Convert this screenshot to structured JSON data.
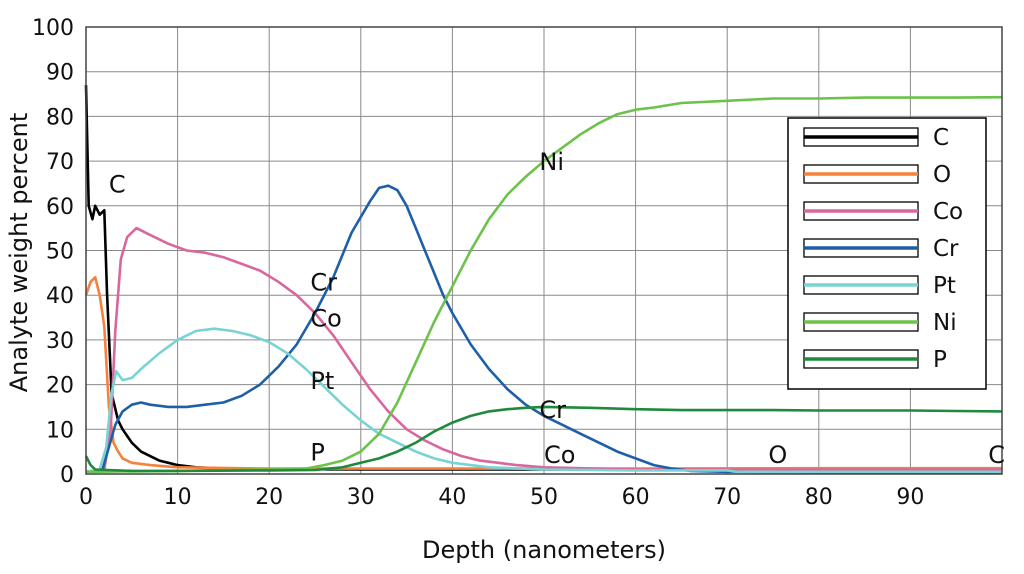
{
  "chart_data": {
    "type": "line",
    "title": "",
    "xlabel": "Depth (nanometers)",
    "ylabel": "Analyte weight percent",
    "xlim": [
      0,
      100
    ],
    "ylim": [
      0,
      100
    ],
    "xticks": [
      0,
      10,
      20,
      30,
      40,
      50,
      60,
      70,
      80,
      90
    ],
    "yticks": [
      0,
      10,
      20,
      30,
      40,
      50,
      60,
      70,
      80,
      90,
      100
    ],
    "grid": true,
    "legend_position": "right",
    "series": [
      {
        "name": "C",
        "color": "#000000",
        "points": [
          [
            0,
            87
          ],
          [
            0.3,
            60
          ],
          [
            0.7,
            57
          ],
          [
            1,
            60
          ],
          [
            1.5,
            58
          ],
          [
            2,
            59
          ],
          [
            2.3,
            40
          ],
          [
            2.8,
            18
          ],
          [
            3.5,
            12
          ],
          [
            4,
            10
          ],
          [
            5,
            7
          ],
          [
            6,
            5
          ],
          [
            7,
            4
          ],
          [
            8,
            3
          ],
          [
            9,
            2.5
          ],
          [
            10,
            2
          ],
          [
            12,
            1.5
          ],
          [
            15,
            1.2
          ],
          [
            20,
            1.1
          ],
          [
            30,
            1
          ],
          [
            40,
            1
          ],
          [
            50,
            1
          ],
          [
            60,
            1
          ],
          [
            70,
            1
          ],
          [
            80,
            1
          ],
          [
            90,
            1
          ],
          [
            100,
            1
          ]
        ]
      },
      {
        "name": "O",
        "color": "#f4823c",
        "points": [
          [
            0,
            40
          ],
          [
            0.5,
            43
          ],
          [
            1,
            44
          ],
          [
            1.5,
            40
          ],
          [
            2,
            33
          ],
          [
            2.5,
            15
          ],
          [
            3,
            7
          ],
          [
            3.5,
            5
          ],
          [
            4,
            3.5
          ],
          [
            5,
            2.5
          ],
          [
            7,
            2
          ],
          [
            10,
            1.5
          ],
          [
            20,
            1.2
          ],
          [
            40,
            1.2
          ],
          [
            60,
            1.2
          ],
          [
            80,
            1.3
          ],
          [
            100,
            1.3
          ]
        ]
      },
      {
        "name": "Co",
        "color": "#d9679e",
        "points": [
          [
            0,
            0.5
          ],
          [
            2,
            1
          ],
          [
            2.7,
            10
          ],
          [
            3.2,
            32
          ],
          [
            3.8,
            48
          ],
          [
            4.5,
            53
          ],
          [
            5.5,
            55
          ],
          [
            7,
            53.5
          ],
          [
            9,
            51.5
          ],
          [
            11,
            50
          ],
          [
            13,
            49.5
          ],
          [
            15,
            48.5
          ],
          [
            17,
            47
          ],
          [
            19,
            45.5
          ],
          [
            21,
            43
          ],
          [
            23,
            40
          ],
          [
            25,
            36
          ],
          [
            27,
            31
          ],
          [
            29,
            25
          ],
          [
            31,
            19
          ],
          [
            33,
            14
          ],
          [
            35,
            10
          ],
          [
            37,
            7.5
          ],
          [
            39,
            5.5
          ],
          [
            41,
            4
          ],
          [
            43,
            3
          ],
          [
            45,
            2.5
          ],
          [
            47,
            2
          ],
          [
            50,
            1.5
          ],
          [
            60,
            1
          ],
          [
            80,
            1
          ],
          [
            100,
            1
          ]
        ]
      },
      {
        "name": "Cr",
        "color": "#1f5fa8",
        "points": [
          [
            0,
            0.5
          ],
          [
            1.8,
            1
          ],
          [
            2.5,
            6
          ],
          [
            3.2,
            11
          ],
          [
            4,
            14
          ],
          [
            5,
            15.5
          ],
          [
            6,
            16
          ],
          [
            7,
            15.5
          ],
          [
            9,
            15
          ],
          [
            11,
            15
          ],
          [
            13,
            15.5
          ],
          [
            15,
            16
          ],
          [
            17,
            17.5
          ],
          [
            19,
            20
          ],
          [
            21,
            24
          ],
          [
            23,
            29
          ],
          [
            25,
            36
          ],
          [
            27,
            44
          ],
          [
            29,
            54
          ],
          [
            31,
            61
          ],
          [
            32,
            64
          ],
          [
            33,
            64.5
          ],
          [
            34,
            63.5
          ],
          [
            35,
            60
          ],
          [
            36,
            55
          ],
          [
            37,
            50
          ],
          [
            38,
            45
          ],
          [
            39,
            40
          ],
          [
            40,
            36
          ],
          [
            42,
            29
          ],
          [
            44,
            23.5
          ],
          [
            46,
            19
          ],
          [
            48,
            15.5
          ],
          [
            50,
            13
          ],
          [
            52,
            11
          ],
          [
            54,
            9
          ],
          [
            56,
            7
          ],
          [
            58,
            5
          ],
          [
            60,
            3.5
          ],
          [
            62,
            2
          ],
          [
            64,
            1.2
          ],
          [
            66,
            0.7
          ],
          [
            70,
            0.5
          ],
          [
            100,
            0.3
          ]
        ]
      },
      {
        "name": "Pt",
        "color": "#79d3d3",
        "points": [
          [
            0,
            0.5
          ],
          [
            1.5,
            1
          ],
          [
            2.2,
            6
          ],
          [
            2.8,
            18
          ],
          [
            3.3,
            23
          ],
          [
            4,
            21
          ],
          [
            5,
            21.5
          ],
          [
            6,
            23.5
          ],
          [
            8,
            27
          ],
          [
            10,
            30
          ],
          [
            12,
            32
          ],
          [
            14,
            32.5
          ],
          [
            16,
            32
          ],
          [
            18,
            31
          ],
          [
            20,
            29.5
          ],
          [
            22,
            27
          ],
          [
            24,
            23.5
          ],
          [
            26,
            19.5
          ],
          [
            28,
            15.5
          ],
          [
            30,
            12
          ],
          [
            32,
            9
          ],
          [
            34,
            7
          ],
          [
            36,
            5
          ],
          [
            38,
            3.5
          ],
          [
            40,
            2.5
          ],
          [
            44,
            1.5
          ],
          [
            50,
            1
          ],
          [
            60,
            0.8
          ],
          [
            70,
            0.8
          ],
          [
            71,
            0.5
          ],
          [
            80,
            0.5
          ],
          [
            100,
            0.5
          ]
        ]
      },
      {
        "name": "Ni",
        "color": "#6cc24a",
        "points": [
          [
            0,
            0.5
          ],
          [
            10,
            0.7
          ],
          [
            20,
            1
          ],
          [
            24,
            1.2
          ],
          [
            26,
            2
          ],
          [
            28,
            3
          ],
          [
            30,
            5
          ],
          [
            32,
            9
          ],
          [
            34,
            16
          ],
          [
            36,
            25
          ],
          [
            38,
            34
          ],
          [
            40,
            42
          ],
          [
            42,
            50
          ],
          [
            44,
            57
          ],
          [
            46,
            62.5
          ],
          [
            48,
            66.5
          ],
          [
            50,
            70
          ],
          [
            52,
            73
          ],
          [
            54,
            76
          ],
          [
            56,
            78.5
          ],
          [
            58,
            80.5
          ],
          [
            60,
            81.5
          ],
          [
            62,
            82
          ],
          [
            65,
            83
          ],
          [
            70,
            83.5
          ],
          [
            75,
            84
          ],
          [
            80,
            84
          ],
          [
            85,
            84.2
          ],
          [
            90,
            84.2
          ],
          [
            95,
            84.2
          ],
          [
            100,
            84.3
          ]
        ]
      },
      {
        "name": "P",
        "color": "#1f8a3c",
        "points": [
          [
            0,
            4
          ],
          [
            0.5,
            2
          ],
          [
            1,
            1
          ],
          [
            5,
            0.7
          ],
          [
            10,
            0.7
          ],
          [
            20,
            0.8
          ],
          [
            25,
            0.9
          ],
          [
            28,
            1.5
          ],
          [
            30,
            2.5
          ],
          [
            32,
            3.5
          ],
          [
            34,
            5
          ],
          [
            36,
            7
          ],
          [
            38,
            9.5
          ],
          [
            40,
            11.5
          ],
          [
            42,
            13
          ],
          [
            44,
            14
          ],
          [
            46,
            14.5
          ],
          [
            48,
            14.8
          ],
          [
            50,
            15
          ],
          [
            55,
            14.8
          ],
          [
            60,
            14.5
          ],
          [
            65,
            14.3
          ],
          [
            70,
            14.3
          ],
          [
            75,
            14.3
          ],
          [
            80,
            14.2
          ],
          [
            85,
            14.2
          ],
          [
            90,
            14.2
          ],
          [
            95,
            14.1
          ],
          [
            100,
            14
          ]
        ]
      }
    ],
    "annotations": [
      {
        "text": "C",
        "x": 2.5,
        "y": 63
      },
      {
        "text": "Ni",
        "x": 49.5,
        "y": 68
      },
      {
        "text": "Cr",
        "x": 24.5,
        "y": 41
      },
      {
        "text": "Co",
        "x": 24.5,
        "y": 33
      },
      {
        "text": "Pt",
        "x": 24.5,
        "y": 19
      },
      {
        "text": "P",
        "x": 24.5,
        "y": 3
      },
      {
        "text": "Cr",
        "x": 49.5,
        "y": 12.5
      },
      {
        "text": "Co",
        "x": 50,
        "y": 2.5
      },
      {
        "text": "O",
        "x": 74.5,
        "y": 2.5
      },
      {
        "text": "C",
        "x": 98.5,
        "y": 2.5
      }
    ]
  }
}
